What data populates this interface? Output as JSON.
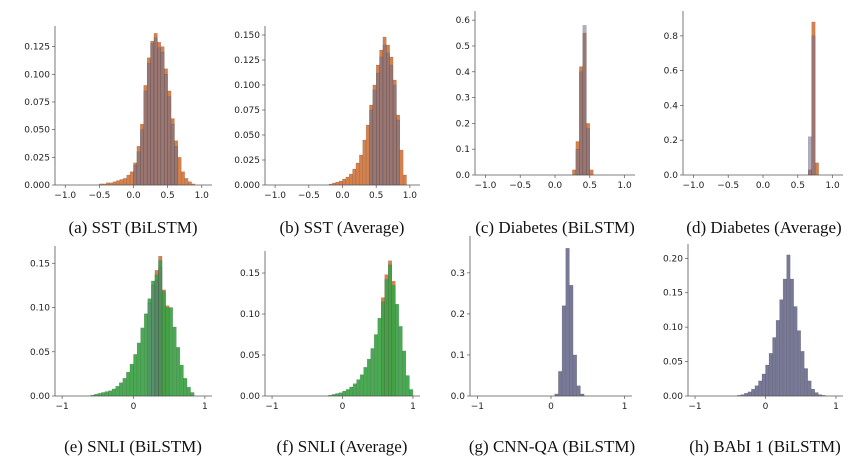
{
  "colors": {
    "orange": "#cf6a2b",
    "purple": "#6c6c8e",
    "green": "#3aa344",
    "axis": "#555555",
    "text": "#222222"
  },
  "chart_data": [
    {
      "type": "bar",
      "caption": "(a) SST (BiLSTM)",
      "xlim": [
        -1.15,
        1.15
      ],
      "ylim": [
        0,
        0.14
      ],
      "xticks": [
        -1.0,
        -0.5,
        0.0,
        0.5,
        1.0
      ],
      "xtick_labels": [
        "−1.0",
        "−0.5",
        "0.0",
        "0.5",
        "1.0"
      ],
      "yticks": [
        0.0,
        0.025,
        0.05,
        0.075,
        0.1,
        0.125
      ],
      "ytick_labels": [
        "0.000",
        "0.025",
        "0.050",
        "0.075",
        "0.100",
        "0.125"
      ],
      "bin_width": 0.05,
      "series": [
        {
          "name": "orange",
          "color": "#cf6a2b",
          "alpha": 0.85,
          "bins": [
            -0.5,
            -0.45,
            -0.4,
            -0.35,
            -0.3,
            -0.25,
            -0.2,
            -0.15,
            -0.1,
            -0.05,
            0.0,
            0.05,
            0.1,
            0.15,
            0.2,
            0.25,
            0.3,
            0.35,
            0.4,
            0.45,
            0.5,
            0.55,
            0.6,
            0.65,
            0.7,
            0.75,
            0.8,
            0.85
          ],
          "values": [
            0.001,
            0.001,
            0.002,
            0.002,
            0.003,
            0.004,
            0.005,
            0.006,
            0.009,
            0.012,
            0.02,
            0.035,
            0.055,
            0.09,
            0.115,
            0.13,
            0.137,
            0.129,
            0.125,
            0.105,
            0.085,
            0.06,
            0.04,
            0.025,
            0.012,
            0.006,
            0.003,
            0.001
          ]
        },
        {
          "name": "purple",
          "color": "#6c6c8e",
          "alpha": 0.55,
          "bins": [
            0.0,
            0.05,
            0.1,
            0.15,
            0.2,
            0.25,
            0.3,
            0.35,
            0.4,
            0.45,
            0.5,
            0.55,
            0.6
          ],
          "values": [
            0.018,
            0.03,
            0.05,
            0.085,
            0.11,
            0.128,
            0.133,
            0.124,
            0.12,
            0.1,
            0.08,
            0.055,
            0.035
          ]
        }
      ]
    },
    {
      "type": "bar",
      "caption": "(b) SST (Average)",
      "xlim": [
        -1.15,
        1.15
      ],
      "ylim": [
        0,
        0.155
      ],
      "xticks": [
        -1.0,
        -0.5,
        0.0,
        0.5,
        1.0
      ],
      "xtick_labels": [
        "−1.0",
        "−0.5",
        "0.0",
        "0.5",
        "1.0"
      ],
      "yticks": [
        0.0,
        0.025,
        0.05,
        0.075,
        0.1,
        0.125,
        0.15
      ],
      "ytick_labels": [
        "0.000",
        "0.025",
        "0.050",
        "0.075",
        "0.100",
        "0.125",
        "0.150"
      ],
      "bin_width": 0.05,
      "series": [
        {
          "name": "orange",
          "color": "#cf6a2b",
          "alpha": 0.85,
          "bins": [
            -0.2,
            -0.15,
            -0.1,
            -0.05,
            0.0,
            0.05,
            0.1,
            0.15,
            0.2,
            0.25,
            0.3,
            0.35,
            0.4,
            0.45,
            0.5,
            0.55,
            0.6,
            0.65,
            0.7,
            0.75,
            0.8,
            0.85,
            0.9
          ],
          "values": [
            0.001,
            0.002,
            0.003,
            0.004,
            0.006,
            0.008,
            0.011,
            0.016,
            0.022,
            0.03,
            0.045,
            0.06,
            0.08,
            0.1,
            0.12,
            0.135,
            0.148,
            0.14,
            0.128,
            0.105,
            0.07,
            0.035,
            0.01
          ]
        },
        {
          "name": "purple",
          "color": "#6c6c8e",
          "alpha": 0.55,
          "bins": [
            0.4,
            0.45,
            0.5,
            0.55,
            0.6,
            0.65,
            0.7,
            0.75,
            0.8
          ],
          "values": [
            0.075,
            0.095,
            0.112,
            0.128,
            0.14,
            0.132,
            0.12,
            0.1,
            0.065
          ]
        }
      ]
    },
    {
      "type": "bar",
      "caption": "(c) Diabetes (BiLSTM)",
      "xlim": [
        -1.15,
        1.15
      ],
      "ylim": [
        0,
        0.62
      ],
      "xticks": [
        -1.0,
        -0.5,
        0.0,
        0.5,
        1.0
      ],
      "xtick_labels": [
        "−1.0",
        "−0.5",
        "0.0",
        "0.5",
        "1.0"
      ],
      "yticks": [
        0.0,
        0.1,
        0.2,
        0.3,
        0.4,
        0.5,
        0.6
      ],
      "ytick_labels": [
        "0.0",
        "0.1",
        "0.2",
        "0.3",
        "0.4",
        "0.5",
        "0.6"
      ],
      "bin_width": 0.05,
      "series": [
        {
          "name": "orange",
          "color": "#cf6a2b",
          "alpha": 0.85,
          "bins": [
            0.25,
            0.3,
            0.35,
            0.4,
            0.45,
            0.5
          ],
          "values": [
            0.02,
            0.13,
            0.42,
            0.55,
            0.2,
            0.02
          ]
        },
        {
          "name": "purple",
          "color": "#6c6c8e",
          "alpha": 0.55,
          "bins": [
            0.3,
            0.35,
            0.4,
            0.45
          ],
          "values": [
            0.1,
            0.4,
            0.58,
            0.18
          ]
        }
      ]
    },
    {
      "type": "bar",
      "caption": "(d) Diabetes (Average)",
      "xlim": [
        -1.15,
        1.15
      ],
      "ylim": [
        0,
        0.92
      ],
      "xticks": [
        -1.0,
        -0.5,
        0.0,
        0.5,
        1.0
      ],
      "xtick_labels": [
        "−1.0",
        "−0.5",
        "0.0",
        "0.5",
        "1.0"
      ],
      "yticks": [
        0.0,
        0.2,
        0.4,
        0.6,
        0.8
      ],
      "ytick_labels": [
        "0.0",
        "0.2",
        "0.4",
        "0.6",
        "0.8"
      ],
      "bin_width": 0.05,
      "series": [
        {
          "name": "orange",
          "color": "#cf6a2b",
          "alpha": 0.85,
          "bins": [
            0.65,
            0.7,
            0.75
          ],
          "values": [
            0.03,
            0.88,
            0.07
          ]
        },
        {
          "name": "purple",
          "color": "#6c6c8e",
          "alpha": 0.55,
          "bins": [
            0.65,
            0.7
          ],
          "values": [
            0.22,
            0.8
          ]
        }
      ]
    },
    {
      "type": "bar",
      "caption": "(e) SNLI (BiLSTM)",
      "xlim": [
        -1.1,
        1.1
      ],
      "ylim": [
        0,
        0.165
      ],
      "xticks": [
        -1,
        0,
        1
      ],
      "xtick_labels": [
        "−1",
        "0",
        "1"
      ],
      "yticks": [
        0.0,
        0.05,
        0.1,
        0.15
      ],
      "ytick_labels": [
        "0.00",
        "0.05",
        "0.10",
        "0.15"
      ],
      "bin_width": 0.05,
      "series": [
        {
          "name": "orange",
          "color": "#cf6a2b",
          "alpha": 0.85,
          "bins": [
            0.3,
            0.35,
            0.4,
            0.45
          ],
          "values": [
            0.142,
            0.158,
            0.12,
            0.102
          ]
        },
        {
          "name": "green",
          "color": "#3aa344",
          "alpha": 0.92,
          "bins": [
            -0.6,
            -0.55,
            -0.5,
            -0.45,
            -0.4,
            -0.35,
            -0.3,
            -0.25,
            -0.2,
            -0.15,
            -0.1,
            -0.05,
            0.0,
            0.05,
            0.1,
            0.15,
            0.2,
            0.25,
            0.3,
            0.35,
            0.4,
            0.45,
            0.5,
            0.55,
            0.6,
            0.65,
            0.7,
            0.75,
            0.8
          ],
          "values": [
            0.001,
            0.002,
            0.003,
            0.004,
            0.005,
            0.006,
            0.008,
            0.011,
            0.015,
            0.02,
            0.027,
            0.036,
            0.047,
            0.06,
            0.077,
            0.093,
            0.11,
            0.13,
            0.137,
            0.153,
            0.118,
            0.1,
            0.1,
            0.078,
            0.055,
            0.035,
            0.02,
            0.01,
            0.004
          ]
        },
        {
          "name": "purple",
          "color": "#6c6c8e",
          "alpha": 0.35,
          "bins": [
            0.2,
            0.25,
            0.3,
            0.35
          ],
          "values": [
            0.105,
            0.125,
            0.13,
            0.145
          ]
        }
      ]
    },
    {
      "type": "bar",
      "caption": "(f) SNLI (Average)",
      "xlim": [
        -1.1,
        1.1
      ],
      "ylim": [
        0,
        0.172
      ],
      "xticks": [
        -1,
        0,
        1
      ],
      "xtick_labels": [
        "−1",
        "0",
        "1"
      ],
      "yticks": [
        0.0,
        0.05,
        0.1,
        0.15
      ],
      "ytick_labels": [
        "0.00",
        "0.05",
        "0.10",
        "0.15"
      ],
      "bin_width": 0.05,
      "series": [
        {
          "name": "orange",
          "color": "#cf6a2b",
          "alpha": 0.85,
          "bins": [
            0.55,
            0.6,
            0.65,
            0.7
          ],
          "values": [
            0.12,
            0.148,
            0.165,
            0.14
          ]
        },
        {
          "name": "green",
          "color": "#3aa344",
          "alpha": 0.92,
          "bins": [
            -0.2,
            -0.15,
            -0.1,
            -0.05,
            0.0,
            0.05,
            0.1,
            0.15,
            0.2,
            0.25,
            0.3,
            0.35,
            0.4,
            0.45,
            0.5,
            0.55,
            0.6,
            0.65,
            0.7,
            0.75,
            0.8,
            0.85,
            0.9,
            0.95
          ],
          "values": [
            0.001,
            0.002,
            0.003,
            0.004,
            0.006,
            0.008,
            0.011,
            0.015,
            0.02,
            0.026,
            0.035,
            0.045,
            0.058,
            0.075,
            0.095,
            0.115,
            0.142,
            0.16,
            0.135,
            0.112,
            0.085,
            0.055,
            0.025,
            0.008
          ]
        }
      ]
    },
    {
      "type": "bar",
      "caption": "(g) CNN-QA (BiLSTM)",
      "xlim": [
        -1.1,
        1.1
      ],
      "ylim": [
        0,
        0.38
      ],
      "xticks": [
        -1,
        0,
        1
      ],
      "xtick_labels": [
        "−1",
        "0",
        "1"
      ],
      "yticks": [
        0.0,
        0.1,
        0.2,
        0.3
      ],
      "ytick_labels": [
        "0.0",
        "0.1",
        "0.2",
        "0.3"
      ],
      "bin_width": 0.05,
      "series": [
        {
          "name": "purple",
          "color": "#6c6c8e",
          "alpha": 0.92,
          "bins": [
            0.05,
            0.1,
            0.15,
            0.2,
            0.25,
            0.3,
            0.35,
            0.4
          ],
          "values": [
            0.005,
            0.06,
            0.22,
            0.36,
            0.27,
            0.1,
            0.025,
            0.005
          ]
        }
      ]
    },
    {
      "type": "bar",
      "caption": "(h) BAbI 1 (BiLSTM)",
      "xlim": [
        -1.1,
        1.1
      ],
      "ylim": [
        0,
        0.215
      ],
      "xticks": [
        -1,
        0,
        1
      ],
      "xtick_labels": [
        "−1",
        "0",
        "1"
      ],
      "yticks": [
        0.0,
        0.05,
        0.1,
        0.15,
        0.2
      ],
      "ytick_labels": [
        "0.00",
        "0.05",
        "0.10",
        "0.15",
        "0.20"
      ],
      "bin_width": 0.05,
      "series": [
        {
          "name": "purple",
          "color": "#6c6c8e",
          "alpha": 0.92,
          "bins": [
            -0.4,
            -0.35,
            -0.3,
            -0.25,
            -0.2,
            -0.15,
            -0.1,
            -0.05,
            0.0,
            0.05,
            0.1,
            0.15,
            0.2,
            0.25,
            0.3,
            0.35,
            0.4,
            0.45,
            0.5,
            0.55,
            0.6,
            0.65,
            0.7,
            0.75,
            0.8
          ],
          "values": [
            0.001,
            0.002,
            0.004,
            0.006,
            0.01,
            0.015,
            0.022,
            0.032,
            0.045,
            0.062,
            0.085,
            0.11,
            0.14,
            0.17,
            0.205,
            0.17,
            0.13,
            0.095,
            0.065,
            0.04,
            0.022,
            0.01,
            0.005,
            0.002,
            0.001
          ]
        }
      ]
    }
  ]
}
